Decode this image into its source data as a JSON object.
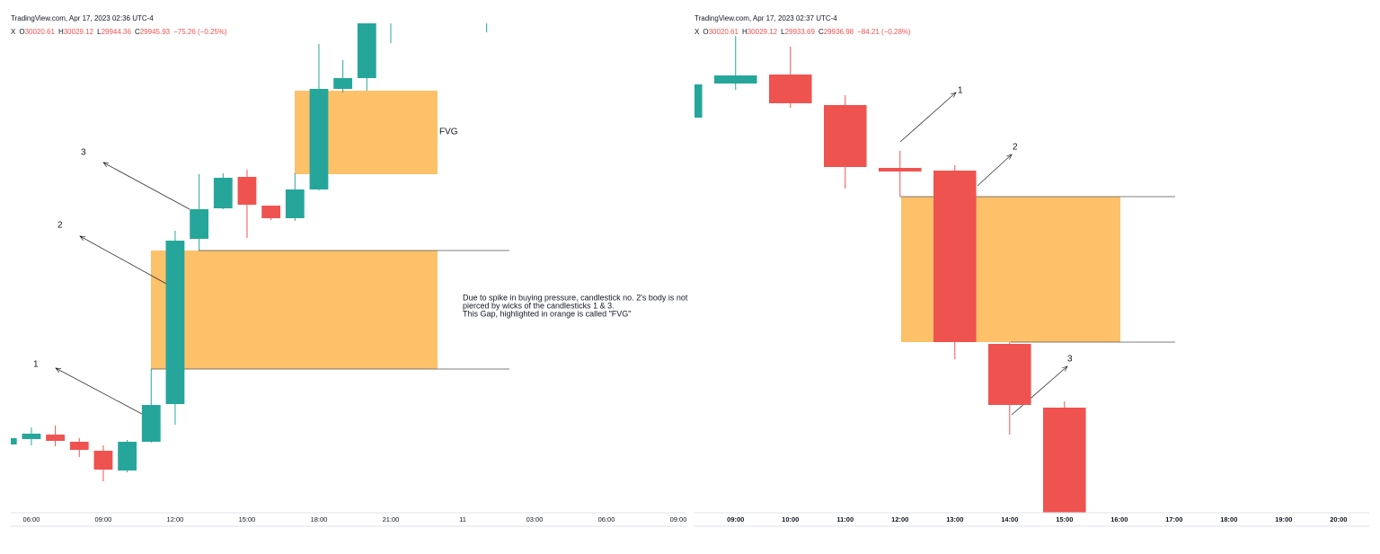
{
  "chart_data": [
    {
      "type": "candlestick",
      "header": "TradingView.com, Apr 17, 2023 02:36 UTC-4",
      "symbol": "X",
      "ohlc": [
        {
          "label": "O",
          "value": "30020.61"
        },
        {
          "label": "H",
          "value": "30029.12"
        },
        {
          "label": "L",
          "value": "29944.36"
        },
        {
          "label": "C",
          "value": "29945.93"
        }
      ],
      "change": "−75.26 (−0.25%)",
      "x": [
        5,
        6,
        7,
        8,
        9,
        10,
        11,
        12,
        13,
        14,
        15,
        16,
        17,
        18,
        19,
        20,
        21,
        25
      ],
      "open": [
        29776,
        29782,
        29787,
        29779,
        29769,
        29747,
        29779,
        29821,
        30005,
        30039,
        30074,
        30042,
        30028,
        30060,
        30172,
        30184,
        30261,
        30280
      ],
      "high": [
        29783,
        29795,
        29797,
        29783,
        29775,
        29781,
        29860,
        30014,
        30077,
        30078,
        30082,
        30042,
        30078,
        30222,
        30204,
        30251,
        30300,
        30300
      ],
      "low": [
        29776,
        29775,
        29774,
        29762,
        29735,
        29745,
        29778,
        29798,
        29992,
        30038,
        30006,
        30026,
        30025,
        30059,
        30168,
        30170,
        30223,
        30235
      ],
      "close": [
        29783,
        29788,
        29780,
        29770,
        29748,
        29779,
        29820,
        30003,
        30038,
        30073,
        30043,
        30028,
        30060,
        30172,
        30184,
        30245,
        30290,
        30285
      ],
      "up_color": "#26a69a",
      "down_color": "#ef5350",
      "xlim": [
        5.14,
        33.3
      ],
      "ylim": [
        29700,
        30245
      ],
      "xticks": [
        {
          "value": 6,
          "label": "06:00"
        },
        {
          "value": 9,
          "label": "09:00"
        },
        {
          "value": 12,
          "label": "12:00"
        },
        {
          "value": 15,
          "label": "15:00"
        },
        {
          "value": 18,
          "label": "18:00"
        },
        {
          "value": 21,
          "label": "21:00"
        },
        {
          "value": 24,
          "label": "11"
        },
        {
          "value": 27,
          "label": "03:00"
        },
        {
          "value": 30,
          "label": "06:00"
        },
        {
          "value": 33,
          "label": "09:00"
        }
      ],
      "annotations": {
        "fvg": "FVG",
        "n1": "1",
        "n2": "2",
        "n3": "3",
        "note": [
          "Due to spike in buying pressure,  candlestick no. 2's body is not",
          "pierced by wicks of the candlesticks 1 & 3.",
          "This Gap, highlighted in orange is called \"FVG\""
        ]
      }
    },
    {
      "type": "candlestick",
      "header": "TradingView.com, Apr 17, 2023 02:37 UTC-4",
      "symbol": "X",
      "ohlc": [
        {
          "label": "O",
          "value": "30020.61"
        },
        {
          "label": "H",
          "value": "30029.12"
        },
        {
          "label": "L",
          "value": "29933.69"
        },
        {
          "label": "C",
          "value": "29936.98"
        }
      ],
      "change": "−84.21 (−0.28%)",
      "x": [
        8,
        9,
        10,
        11,
        12,
        13,
        14,
        15
      ],
      "open": [
        30140,
        30178,
        30188,
        30154,
        30084,
        30081,
        29888,
        29817
      ],
      "high": [
        30180,
        30231,
        30219,
        30165,
        30103,
        30087,
        29890,
        29824
      ],
      "low": [
        30138,
        30171,
        30151,
        30061,
        30052,
        29871,
        29787,
        29650
      ],
      "close": [
        30177,
        30187,
        30156,
        30085,
        30080,
        29890,
        29820,
        29671
      ],
      "up_color": "#26a69a",
      "down_color": "#ef5350",
      "xlim": [
        8.25,
        20.56
      ],
      "ylim": [
        29700,
        30245
      ],
      "xticks": [
        {
          "value": 9,
          "label": "09:00"
        },
        {
          "value": 10,
          "label": "10:00"
        },
        {
          "value": 11,
          "label": "11:00"
        },
        {
          "value": 12,
          "label": "12:00"
        },
        {
          "value": 13,
          "label": "13:00"
        },
        {
          "value": 14,
          "label": "14:00"
        },
        {
          "value": 15,
          "label": "15:00"
        },
        {
          "value": 16,
          "label": "16:00"
        },
        {
          "value": 17,
          "label": "17:00"
        },
        {
          "value": 18,
          "label": "18:00"
        },
        {
          "value": 19,
          "label": "19:00"
        },
        {
          "value": 20,
          "label": "20:00"
        }
      ],
      "annotations": {
        "n1": "1",
        "n2": "2",
        "n3": "3"
      }
    }
  ]
}
